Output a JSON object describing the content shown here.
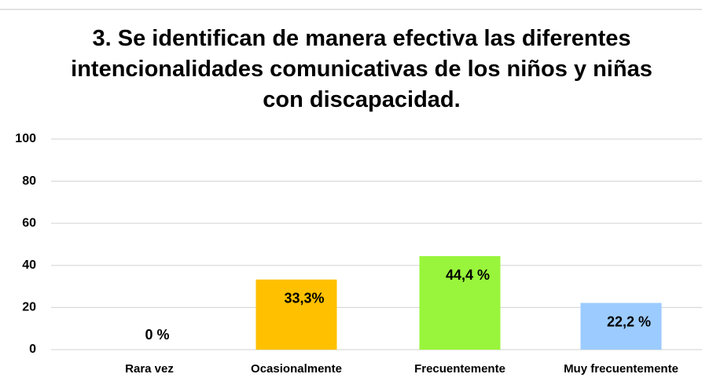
{
  "chart_data": {
    "type": "bar",
    "title": "3. Se identifican de manera efectiva las diferentes intencionalidades comunicativas de los niños y niñas con discapacidad.",
    "categories": [
      "Rara vez",
      "Ocasionalmente",
      "Frecuentemente",
      "Muy frecuentemente"
    ],
    "values": [
      0,
      33.3,
      44.4,
      22.2
    ],
    "value_labels": [
      "0 %",
      "33,3%",
      "44,4 %",
      "22,2 %"
    ],
    "colors": [
      "#ffc000",
      "#ffc000",
      "#99f53b",
      "#9ccbff"
    ],
    "ylim": [
      0,
      100
    ],
    "yticks": [
      0,
      20,
      40,
      60,
      80,
      100
    ],
    "grid": true
  }
}
